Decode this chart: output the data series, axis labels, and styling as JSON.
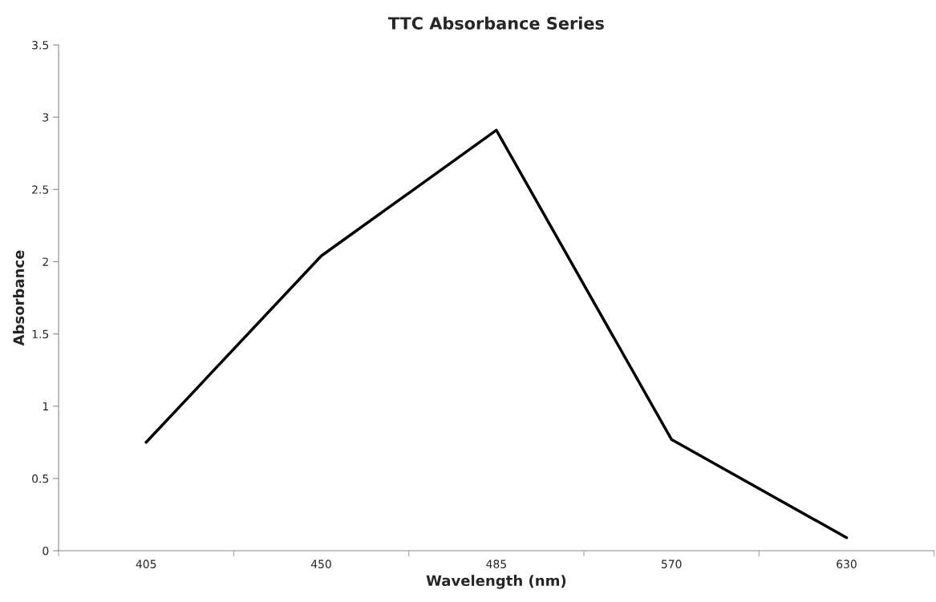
{
  "chart_data": {
    "type": "line",
    "title": "TTC Absorbance Series",
    "xlabel": "Wavelength (nm)",
    "ylabel": "Absorbance",
    "categories": [
      "405",
      "450",
      "485",
      "570",
      "630"
    ],
    "series": [
      {
        "color": "#000000",
        "values": [
          0.75,
          2.04,
          2.91,
          0.77,
          0.09
        ]
      }
    ],
    "ylim": [
      0,
      3.5
    ],
    "yticks": [
      0,
      0.5,
      1,
      1.5,
      2,
      2.5,
      3,
      3.5
    ],
    "grid": false,
    "marker": "none",
    "line_style": "solid"
  }
}
